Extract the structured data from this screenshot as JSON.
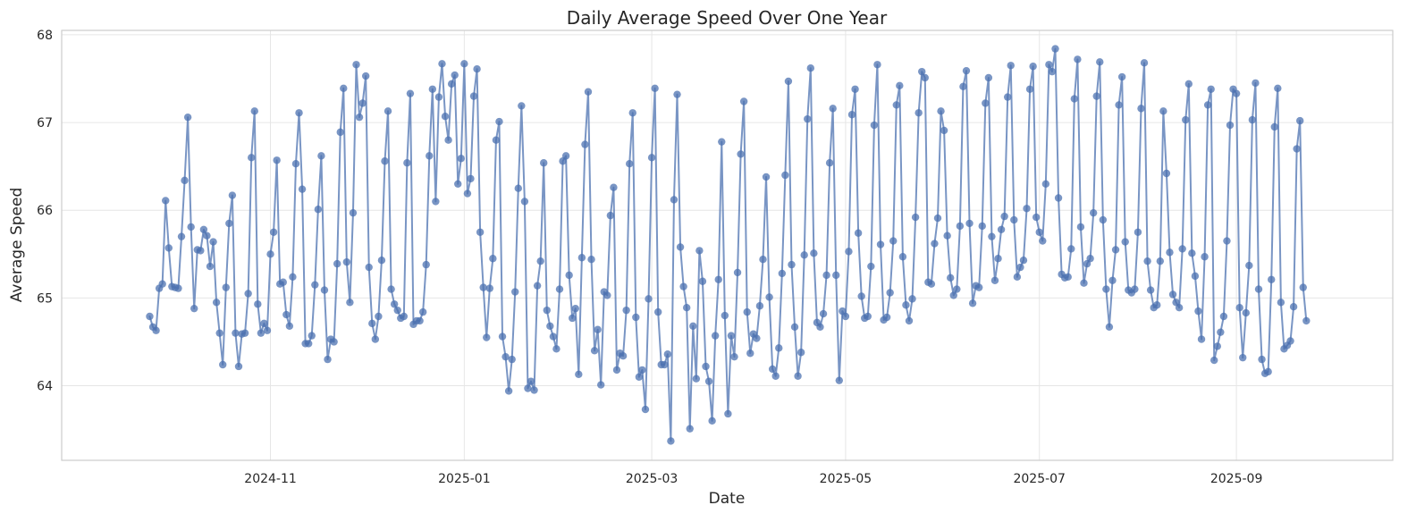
{
  "chart_data": {
    "type": "line",
    "title": "Daily Average Speed Over One Year",
    "xlabel": "Date",
    "ylabel": "Average Speed",
    "x_start_date": "2024-09-24",
    "x_end_date": "2025-09-23",
    "x_ticks": [
      {
        "date": "2024-11-01",
        "label": "2024-11"
      },
      {
        "date": "2025-01-01",
        "label": "2025-01"
      },
      {
        "date": "2025-03-01",
        "label": "2025-03"
      },
      {
        "date": "2025-05-01",
        "label": "2025-05"
      },
      {
        "date": "2025-07-01",
        "label": "2025-07"
      },
      {
        "date": "2025-09-01",
        "label": "2025-09"
      }
    ],
    "y_ticks": [
      64,
      65,
      66,
      67,
      68
    ],
    "ylim": [
      63.15,
      68.05
    ],
    "grid": true,
    "series": [
      {
        "color": "#4c72b0",
        "marker": "circle",
        "values": [
          64.79,
          64.67,
          64.63,
          65.11,
          65.16,
          66.11,
          65.57,
          65.13,
          65.12,
          65.11,
          65.7,
          66.34,
          67.06,
          65.81,
          64.88,
          65.55,
          65.54,
          65.78,
          65.71,
          65.36,
          65.64,
          64.95,
          64.6,
          64.24,
          65.12,
          65.85,
          66.17,
          64.6,
          64.22,
          64.59,
          64.6,
          65.05,
          66.6,
          67.13,
          64.93,
          64.6,
          64.71,
          64.63,
          65.5,
          65.75,
          66.57,
          65.16,
          65.18,
          64.81,
          64.68,
          65.24,
          66.53,
          67.11,
          66.24,
          64.48,
          64.48,
          64.57,
          65.15,
          66.01,
          66.62,
          65.09,
          64.3,
          64.53,
          64.5,
          65.39,
          66.89,
          67.39,
          65.41,
          64.95,
          65.97,
          67.66,
          67.06,
          67.22,
          67.53,
          65.35,
          64.71,
          64.53,
          64.79,
          65.43,
          66.56,
          67.13,
          65.1,
          64.93,
          64.86,
          64.77,
          64.79,
          66.54,
          67.33,
          64.7,
          64.74,
          64.74,
          64.84,
          65.38,
          66.62,
          67.38,
          66.1,
          67.29,
          67.67,
          67.07,
          66.8,
          67.44,
          67.54,
          66.3,
          66.59,
          67.67,
          66.19,
          66.36,
          67.3,
          67.61,
          65.75,
          65.12,
          64.55,
          65.11,
          65.45,
          66.8,
          67.01,
          64.56,
          64.33,
          63.94,
          64.3,
          65.07,
          66.25,
          67.19,
          66.1,
          63.97,
          64.05,
          63.95,
          65.14,
          65.42,
          66.54,
          64.86,
          64.68,
          64.56,
          64.42,
          65.1,
          66.56,
          66.62,
          65.26,
          64.77,
          64.88,
          64.13,
          65.46,
          66.75,
          67.35,
          65.44,
          64.4,
          64.64,
          64.01,
          65.07,
          65.03,
          65.94,
          66.26,
          64.18,
          64.37,
          64.34,
          64.86,
          66.53,
          67.11,
          64.78,
          64.1,
          64.18,
          63.73,
          64.99,
          66.6,
          67.39,
          64.84,
          64.24,
          64.24,
          64.36,
          63.37,
          66.12,
          67.32,
          65.58,
          65.13,
          64.89,
          63.51,
          64.68,
          64.08,
          65.54,
          65.19,
          64.22,
          64.05,
          63.6,
          64.57,
          65.21,
          66.78,
          64.8,
          63.68,
          64.57,
          64.33,
          65.29,
          66.64,
          67.24,
          64.84,
          64.37,
          64.59,
          64.54,
          64.91,
          65.44,
          66.38,
          65.01,
          64.19,
          64.11,
          64.43,
          65.28,
          66.4,
          67.47,
          65.38,
          64.67,
          64.11,
          64.38,
          65.49,
          67.04,
          67.62,
          65.51,
          64.72,
          64.67,
          64.82,
          65.26,
          66.54,
          67.16,
          65.26,
          64.06,
          64.85,
          64.79,
          65.53,
          67.09,
          67.38,
          65.74,
          65.02,
          64.77,
          64.79,
          65.36,
          66.97,
          67.66,
          65.61,
          64.75,
          64.78,
          65.06,
          65.65,
          67.2,
          67.42,
          65.47,
          64.92,
          64.74,
          64.99,
          65.92,
          67.11,
          67.58,
          67.51,
          65.18,
          65.16,
          65.62,
          65.91,
          67.13,
          66.91,
          65.71,
          65.23,
          65.03,
          65.1,
          65.82,
          67.41,
          67.59,
          65.85,
          64.94,
          65.14,
          65.12,
          65.82,
          67.22,
          67.51,
          65.7,
          65.2,
          65.45,
          65.78,
          65.93,
          67.29,
          67.65,
          65.89,
          65.24,
          65.35,
          65.43,
          66.02,
          67.38,
          67.64,
          65.92,
          65.75,
          65.65,
          66.3,
          67.66,
          67.58,
          67.84,
          66.14,
          65.27,
          65.23,
          65.24,
          65.56,
          67.27,
          67.72,
          65.81,
          65.17,
          65.39,
          65.45,
          65.97,
          67.3,
          67.69,
          65.89,
          65.1,
          64.67,
          65.2,
          65.55,
          67.2,
          67.52,
          65.64,
          65.09,
          65.06,
          65.1,
          65.75,
          67.16,
          67.68,
          65.42,
          65.09,
          64.89,
          64.92,
          65.42,
          67.13,
          66.42,
          65.52,
          65.04,
          64.95,
          64.89,
          65.56,
          67.03,
          67.44,
          65.51,
          65.25,
          64.85,
          64.53,
          65.47,
          67.2,
          67.38,
          64.29,
          64.45,
          64.61,
          64.79,
          65.65,
          66.97,
          67.38,
          67.33,
          64.89,
          64.32,
          64.83,
          65.37,
          67.03,
          67.45,
          65.1,
          64.3,
          64.14,
          64.16,
          65.21,
          66.95,
          67.39,
          64.95,
          64.42,
          64.46,
          64.51,
          64.9,
          66.7,
          67.02,
          65.12,
          64.74
        ]
      }
    ]
  }
}
